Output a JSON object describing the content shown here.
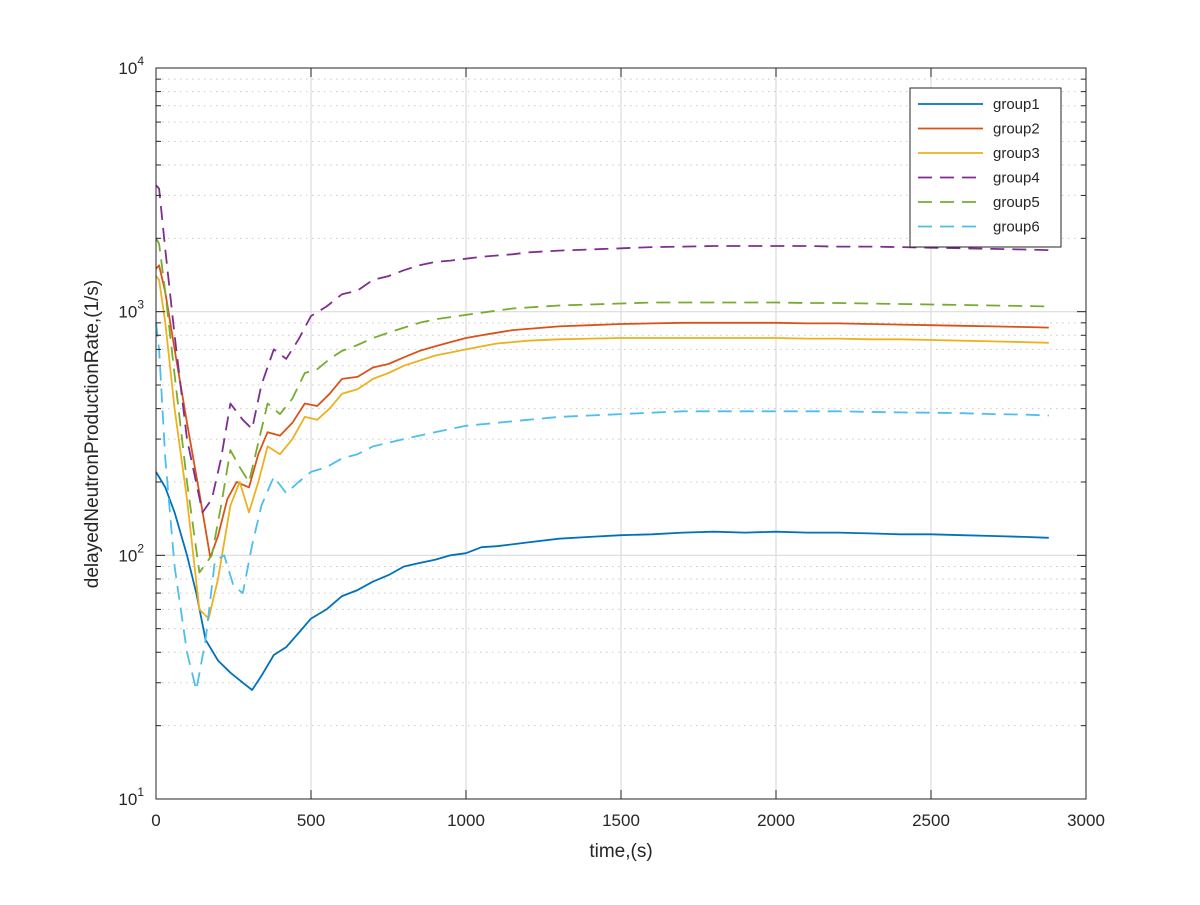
{
  "chart_data": {
    "type": "line",
    "title": "",
    "xlabel": "time,(s)",
    "ylabel": "delayedNeutronProductionRate,(1/s)",
    "xlim": [
      0,
      3000
    ],
    "ylim": [
      10,
      10000
    ],
    "yscale": "log",
    "grid": true,
    "legend_position": "top-right",
    "x_ticks": [
      0,
      500,
      1000,
      1500,
      2000,
      2500,
      3000
    ],
    "x_tick_labels": [
      "0",
      "500",
      "1000",
      "1500",
      "2000",
      "2500",
      "3000"
    ],
    "y_ticks": [
      10,
      100,
      1000,
      10000
    ],
    "y_tick_labels": [
      {
        "base": "10",
        "exp": "1"
      },
      {
        "base": "10",
        "exp": "2"
      },
      {
        "base": "10",
        "exp": "3"
      },
      {
        "base": "10",
        "exp": "4"
      }
    ],
    "series": [
      {
        "name": "group1",
        "color": "#0072bd",
        "dash": "solid",
        "x": [
          0,
          30,
          60,
          100,
          130,
          160,
          200,
          240,
          280,
          310,
          340,
          380,
          420,
          460,
          500,
          550,
          600,
          650,
          700,
          750,
          800,
          850,
          900,
          950,
          1000,
          1050,
          1100,
          1200,
          1300,
          1400,
          1500,
          1600,
          1700,
          1800,
          1900,
          2000,
          2100,
          2200,
          2300,
          2400,
          2500,
          2600,
          2700,
          2800,
          2880
        ],
        "y": [
          220,
          190,
          150,
          100,
          70,
          45,
          37,
          33,
          30,
          28,
          32,
          39,
          42,
          48,
          55,
          60,
          68,
          72,
          78,
          83,
          90,
          93,
          96,
          100,
          102,
          108,
          109,
          113,
          117,
          119,
          121,
          122,
          124,
          125,
          124,
          125,
          124,
          124,
          123,
          122,
          122,
          121,
          120,
          119,
          118
        ]
      },
      {
        "name": "group2",
        "color": "#d95319",
        "dash": "solid",
        "x": [
          0,
          10,
          30,
          60,
          100,
          140,
          175,
          200,
          230,
          260,
          300,
          330,
          360,
          400,
          440,
          480,
          520,
          560,
          600,
          650,
          700,
          750,
          800,
          850,
          900,
          950,
          1000,
          1050,
          1100,
          1150,
          1200,
          1300,
          1400,
          1500,
          1600,
          1700,
          1800,
          1900,
          2000,
          2100,
          2200,
          2300,
          2400,
          2500,
          2600,
          2700,
          2800,
          2880
        ],
        "y": [
          1500,
          1550,
          1200,
          700,
          350,
          180,
          98,
          120,
          170,
          200,
          190,
          260,
          320,
          310,
          350,
          420,
          410,
          460,
          530,
          540,
          590,
          610,
          650,
          690,
          720,
          750,
          780,
          800,
          820,
          840,
          850,
          870,
          880,
          890,
          895,
          900,
          900,
          900,
          900,
          895,
          895,
          890,
          885,
          880,
          875,
          870,
          865,
          860
        ]
      },
      {
        "name": "group3",
        "color": "#edb120",
        "dash": "solid",
        "x": [
          0,
          10,
          30,
          60,
          100,
          140,
          170,
          200,
          240,
          270,
          300,
          330,
          360,
          400,
          440,
          480,
          520,
          560,
          600,
          650,
          700,
          750,
          800,
          850,
          900,
          950,
          1000,
          1050,
          1100,
          1150,
          1200,
          1300,
          1400,
          1500,
          1600,
          1700,
          1800,
          1900,
          2000,
          2100,
          2200,
          2300,
          2400,
          2500,
          2600,
          2700,
          2800,
          2880
        ],
        "y": [
          1400,
          1350,
          900,
          400,
          170,
          60,
          55,
          80,
          160,
          200,
          150,
          200,
          280,
          260,
          300,
          370,
          360,
          400,
          460,
          480,
          530,
          560,
          600,
          630,
          660,
          680,
          700,
          720,
          740,
          750,
          760,
          770,
          775,
          780,
          780,
          780,
          780,
          780,
          780,
          775,
          775,
          770,
          770,
          765,
          760,
          755,
          750,
          745
        ]
      },
      {
        "name": "group4",
        "color": "#7e2f8e",
        "dash": "dashed",
        "x": [
          0,
          10,
          30,
          60,
          100,
          150,
          180,
          210,
          240,
          280,
          310,
          340,
          380,
          420,
          460,
          500,
          550,
          600,
          650,
          700,
          750,
          800,
          850,
          900,
          950,
          1000,
          1050,
          1100,
          1150,
          1200,
          1300,
          1400,
          1500,
          1600,
          1700,
          1800,
          1900,
          2000,
          2100,
          2200,
          2300,
          2400,
          2500,
          2600,
          2700,
          2800,
          2880
        ],
        "y": [
          3300,
          3200,
          1800,
          800,
          300,
          150,
          170,
          250,
          420,
          360,
          330,
          500,
          700,
          640,
          770,
          960,
          1050,
          1180,
          1220,
          1350,
          1400,
          1480,
          1550,
          1600,
          1620,
          1650,
          1680,
          1700,
          1720,
          1750,
          1780,
          1800,
          1820,
          1840,
          1850,
          1860,
          1860,
          1860,
          1860,
          1850,
          1850,
          1840,
          1830,
          1820,
          1810,
          1800,
          1790
        ]
      },
      {
        "name": "group5",
        "color": "#77ac30",
        "dash": "dashed",
        "x": [
          0,
          10,
          30,
          60,
          100,
          140,
          180,
          210,
          240,
          270,
          300,
          330,
          360,
          400,
          440,
          480,
          520,
          560,
          600,
          650,
          700,
          750,
          800,
          850,
          900,
          950,
          1000,
          1050,
          1100,
          1150,
          1200,
          1300,
          1400,
          1500,
          1600,
          1700,
          1800,
          1900,
          2000,
          2100,
          2200,
          2300,
          2400,
          2500,
          2600,
          2700,
          2800,
          2880
        ],
        "y": [
          2000,
          1900,
          1200,
          550,
          200,
          85,
          100,
          160,
          270,
          230,
          200,
          290,
          420,
          380,
          440,
          560,
          580,
          640,
          690,
          730,
          780,
          820,
          860,
          900,
          930,
          950,
          970,
          990,
          1010,
          1030,
          1040,
          1060,
          1070,
          1080,
          1090,
          1090,
          1090,
          1090,
          1090,
          1085,
          1085,
          1080,
          1075,
          1070,
          1065,
          1060,
          1055,
          1050
        ]
      },
      {
        "name": "group6",
        "color": "#4dbeee",
        "dash": "dashed",
        "x": [
          0,
          10,
          30,
          60,
          100,
          130,
          160,
          190,
          220,
          250,
          280,
          310,
          340,
          380,
          420,
          460,
          500,
          550,
          600,
          650,
          700,
          750,
          800,
          850,
          900,
          950,
          1000,
          1050,
          1100,
          1150,
          1200,
          1300,
          1400,
          1500,
          1600,
          1700,
          1800,
          1900,
          2000,
          2100,
          2200,
          2300,
          2400,
          2500,
          2600,
          2700,
          2800,
          2880
        ],
        "y": [
          900,
          700,
          250,
          90,
          40,
          28,
          45,
          95,
          100,
          75,
          70,
          110,
          160,
          210,
          180,
          200,
          220,
          230,
          250,
          260,
          280,
          290,
          300,
          310,
          320,
          330,
          340,
          345,
          350,
          355,
          360,
          370,
          375,
          380,
          385,
          390,
          390,
          390,
          390,
          390,
          390,
          388,
          386,
          385,
          383,
          380,
          378,
          375
        ]
      }
    ]
  }
}
